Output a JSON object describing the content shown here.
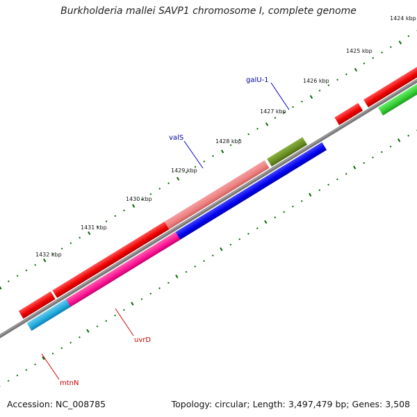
{
  "header": {
    "title": "Burkholderia mallei SAVP1 chromosome I, complete genome"
  },
  "footer": {
    "accession": "Accession: NC_008785",
    "topology": "Topology: circular; Length: 3,497,479 bp; Genes: 3,508"
  },
  "scale": {
    "ticks": [
      "1424 kbp",
      "1425 kbp",
      "1426 kbp",
      "1427 kbp",
      "1428 kbp",
      "1429 kbp",
      "1430 kbp",
      "1431 kbp",
      "1432 kbp"
    ]
  },
  "genes": [
    {
      "name": "galU-1",
      "color": "#000099"
    },
    {
      "name": "valS",
      "color": "#000099"
    },
    {
      "name": "uvrD",
      "color": "#cc0000"
    },
    {
      "name": "mtnN",
      "color": "#cc0000"
    }
  ],
  "colors": {
    "backbone": "#808080",
    "tick": "#006600",
    "red_feature": "#ee0000",
    "blue_feature": "#0000ee",
    "pink_feature": "#ee8080",
    "olive_feature": "#6b8e23",
    "green_feature": "#33cc33",
    "magenta_feature": "#ff1493",
    "cyan_feature": "#22aadd"
  }
}
